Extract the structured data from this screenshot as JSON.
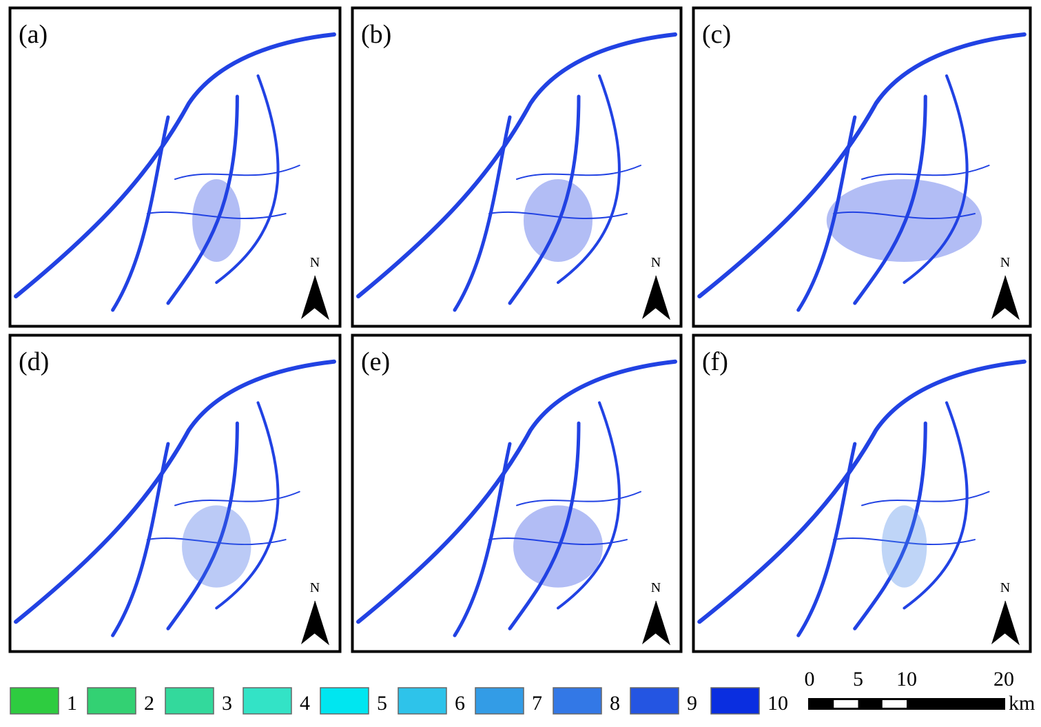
{
  "panels": [
    {
      "label": "(a)",
      "north": "N"
    },
    {
      "label": "(b)",
      "north": "N"
    },
    {
      "label": "(c)",
      "north": "N"
    },
    {
      "label": "(d)",
      "north": "N"
    },
    {
      "label": "(e)",
      "north": "N"
    },
    {
      "label": "(f)",
      "north": "N"
    }
  ],
  "legend": {
    "items": [
      {
        "label": "1",
        "color": "#2ecc40"
      },
      {
        "label": "2",
        "color": "#33d173"
      },
      {
        "label": "3",
        "color": "#33d99c"
      },
      {
        "label": "4",
        "color": "#33e3c6"
      },
      {
        "label": "5",
        "color": "#00e6f0"
      },
      {
        "label": "6",
        "color": "#2ec3ea"
      },
      {
        "label": "7",
        "color": "#339ce6"
      },
      {
        "label": "8",
        "color": "#3378e6"
      },
      {
        "label": "9",
        "color": "#2455e2"
      },
      {
        "label": "10",
        "color": "#0a2ee0"
      }
    ]
  },
  "scale_bar": {
    "ticks": [
      0,
      5,
      10,
      20
    ],
    "unit": "km"
  }
}
